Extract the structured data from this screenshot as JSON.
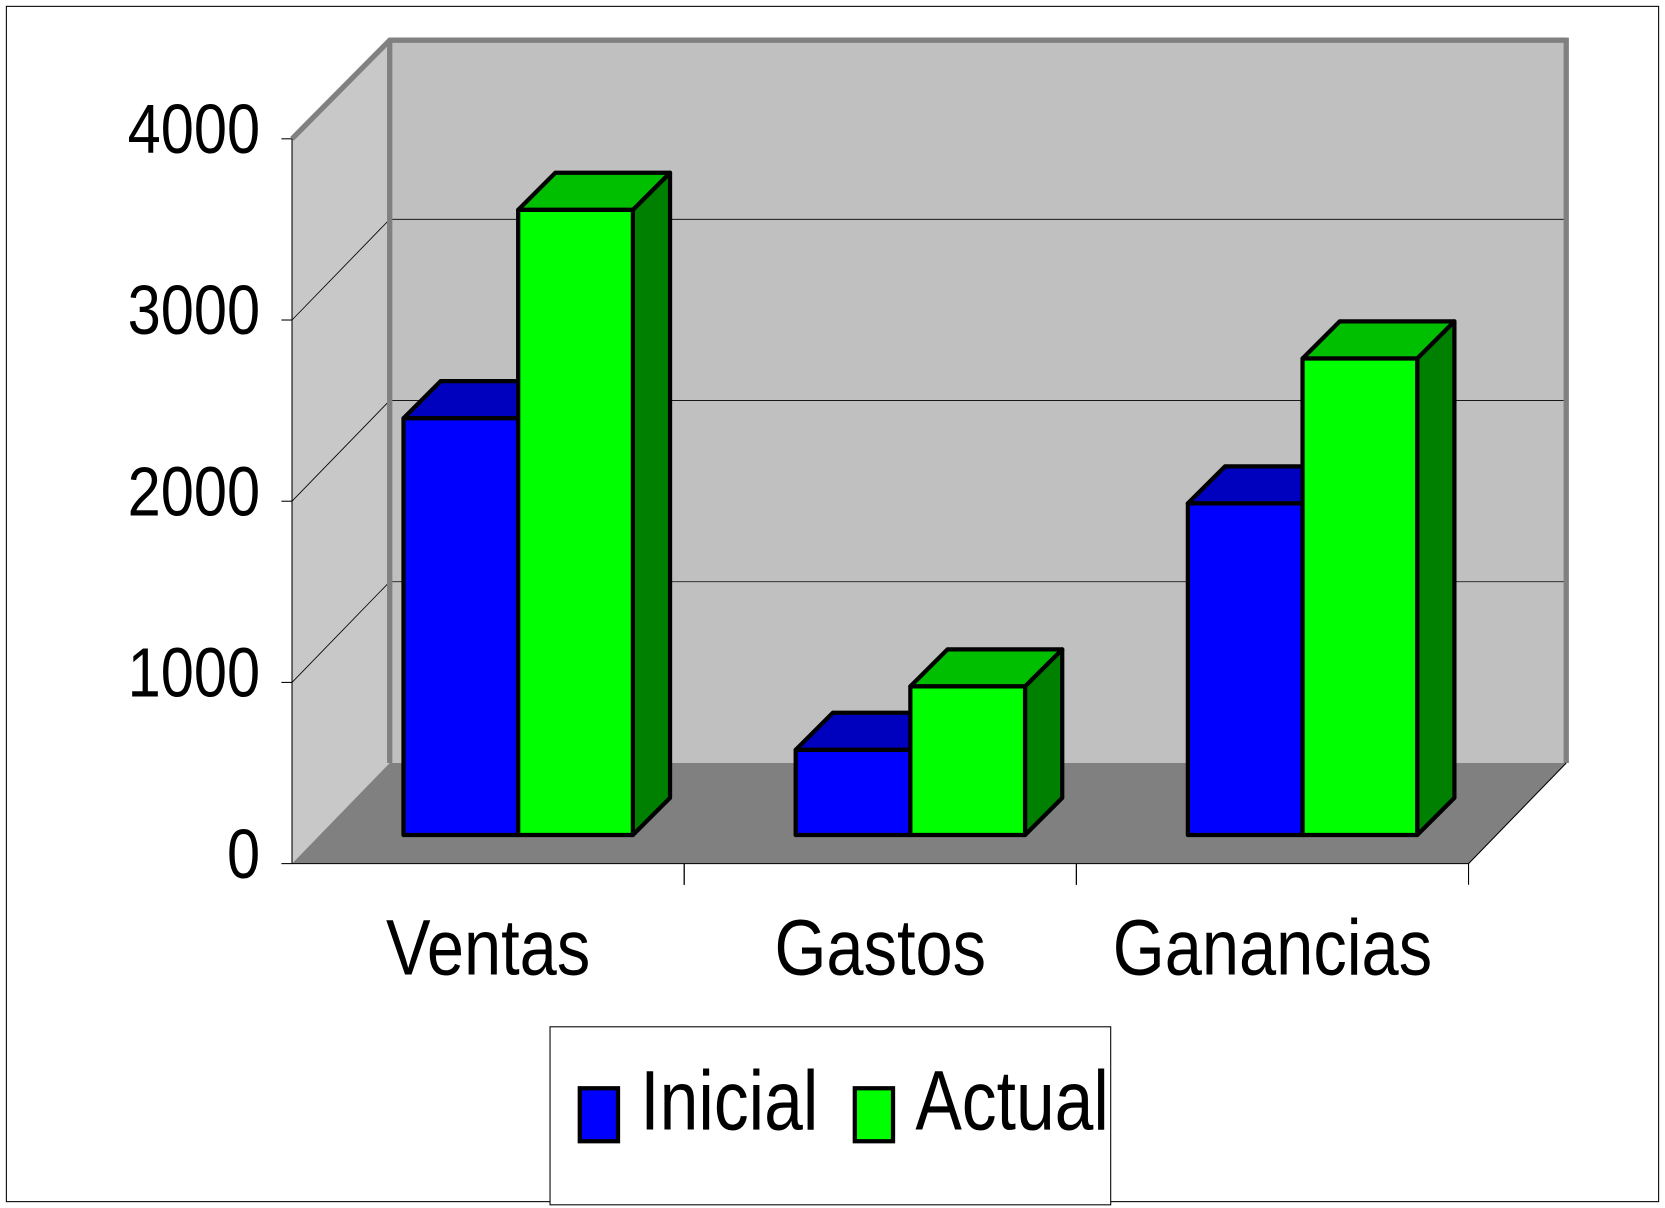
{
  "chart_data": {
    "type": "bar3d",
    "categories": [
      "Ventas",
      "Gastos",
      "Ganancias"
    ],
    "series": [
      {
        "name": "Inicial",
        "color": "#0000ff",
        "values": [
          2300,
          470,
          1830
        ]
      },
      {
        "name": "Actual",
        "color": "#00ff00",
        "values": [
          3450,
          820,
          2630
        ]
      }
    ],
    "ylim": [
      0,
      4000
    ],
    "yticks": [
      0,
      1000,
      2000,
      3000,
      4000
    ],
    "grid": true,
    "legend": "bottom"
  }
}
